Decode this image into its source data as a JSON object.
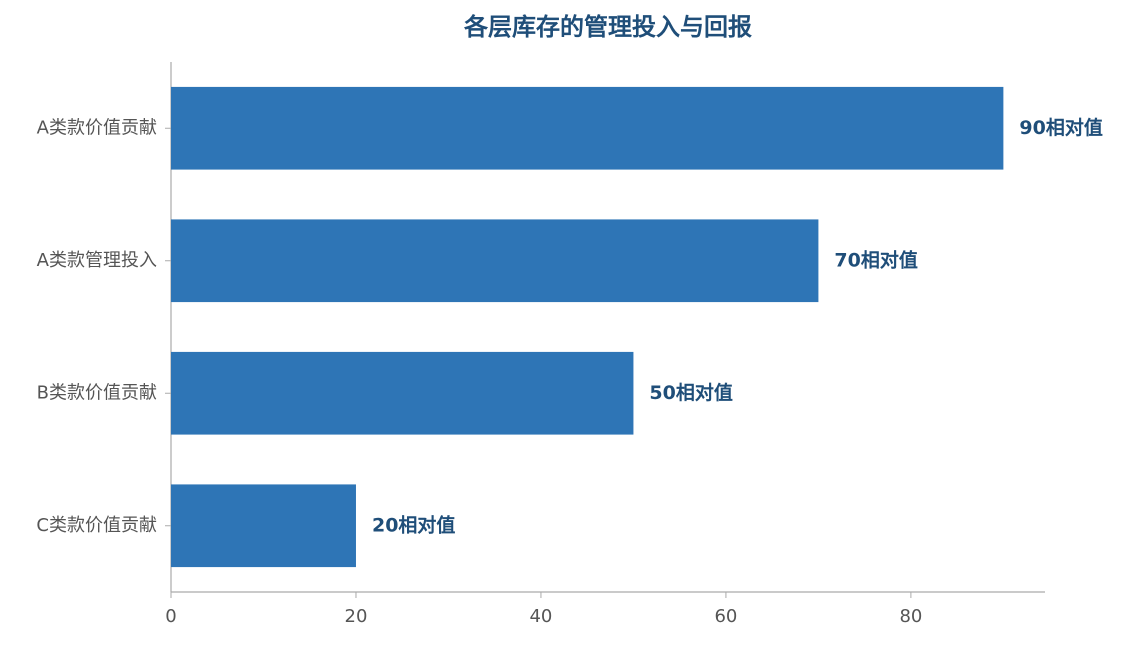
{
  "chart_data": {
    "type": "bar",
    "orientation": "horizontal",
    "title": "各层库存的管理投入与回报",
    "categories": [
      "A类款价值贡献",
      "A类款管理投入",
      "B类款价值贡献",
      "C类款价值贡献"
    ],
    "values": [
      90,
      70,
      50,
      20
    ],
    "value_labels": [
      "90相对值",
      "70相对值",
      "50相对值",
      "20相对值"
    ],
    "color": "#2e75b6",
    "xlim": [
      0,
      94.5
    ],
    "xticks": [
      0,
      20,
      40,
      60,
      80
    ],
    "grid": false
  }
}
